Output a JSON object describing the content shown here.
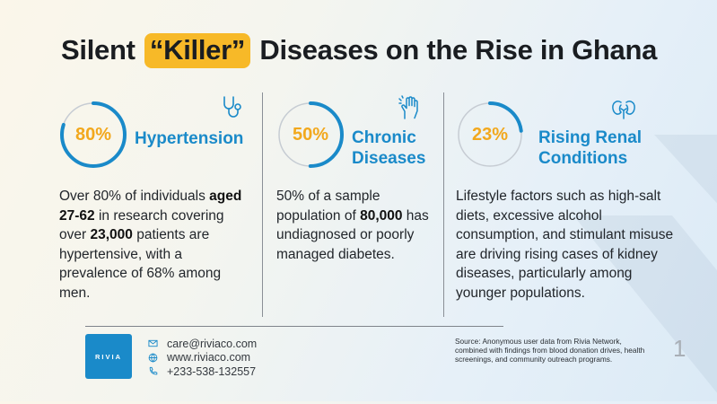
{
  "title": {
    "prefix": "Silent ",
    "highlight": "“Killer”",
    "suffix": " Diseases on the Rise in Ghana"
  },
  "accent_colors": {
    "blue": "#1a8ac9",
    "orange": "#f2a81d",
    "yellow": "#f7b928"
  },
  "stats": [
    {
      "percent_label": "80%",
      "percent_value": 80,
      "category": "Hypertension",
      "icon": "stethoscope-icon",
      "desc": [
        {
          "t": "Over 80% of individuals ",
          "b": false
        },
        {
          "t": "aged 27-62",
          "b": true
        },
        {
          "t": " in research covering over ",
          "b": false
        },
        {
          "t": "23,000",
          "b": true
        },
        {
          "t": " patients are hypertensive, with a prevalence of 68% among men.",
          "b": false
        }
      ]
    },
    {
      "percent_label": "50%",
      "percent_value": 50,
      "category": "Chronic Diseases",
      "icon": "raised-hand-icon",
      "desc": [
        {
          "t": "50% of a sample population of ",
          "b": false
        },
        {
          "t": "80,000",
          "b": true
        },
        {
          "t": " has undiagnosed or poorly managed diabetes.",
          "b": false
        }
      ]
    },
    {
      "percent_label": "23%",
      "percent_value": 23,
      "category": "Rising Renal Conditions",
      "icon": "kidneys-icon",
      "desc": [
        {
          "t": "Lifestyle factors such as high-salt diets, excessive alcohol consumption, and stimulant misuse are driving rising cases of kidney diseases, particularly among younger populations.",
          "b": false
        }
      ]
    }
  ],
  "footer": {
    "logo_text": "RIVIA",
    "email": "care@riviaco.com",
    "website": "www.riviaco.com",
    "phone": "+233-538-132557",
    "source": "Source: Anonymous user data from Rivia Network, combined with findings from blood donation drives, health screenings, and community outreach programs.",
    "page_number": "1"
  }
}
